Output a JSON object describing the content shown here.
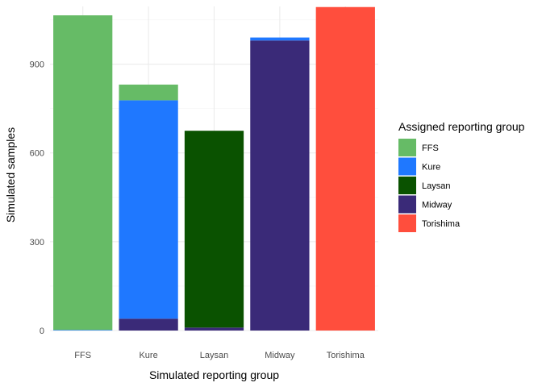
{
  "chart_data": {
    "type": "bar",
    "stacked": true,
    "title": "",
    "xlabel": "Simulated reporting group",
    "ylabel": "Simulated samples",
    "categories": [
      "FFS",
      "Kure",
      "Laysan",
      "Midway",
      "Torishima"
    ],
    "ylim": [
      0,
      1095
    ],
    "yticks": [
      0,
      300,
      600,
      900
    ],
    "yticklabels": [
      "0",
      "300",
      "600",
      "900"
    ],
    "grid": true,
    "legend_position": "right",
    "legend_title": "Assigned reporting group",
    "series": [
      {
        "name": "FFS",
        "color": "#66bb66",
        "values": [
          1063,
          53,
          0,
          0,
          0
        ]
      },
      {
        "name": "Kure",
        "color": "#1f78ff",
        "values": [
          2,
          738,
          0,
          10,
          0
        ]
      },
      {
        "name": "Laysan",
        "color": "#0a5200",
        "values": [
          0,
          0,
          665,
          0,
          0
        ]
      },
      {
        "name": "Midway",
        "color": "#3a2a78",
        "values": [
          0,
          40,
          10,
          980,
          0
        ]
      },
      {
        "name": "Torishima",
        "color": "#ff4e3d",
        "values": [
          0,
          0,
          0,
          0,
          1093
        ]
      }
    ]
  }
}
